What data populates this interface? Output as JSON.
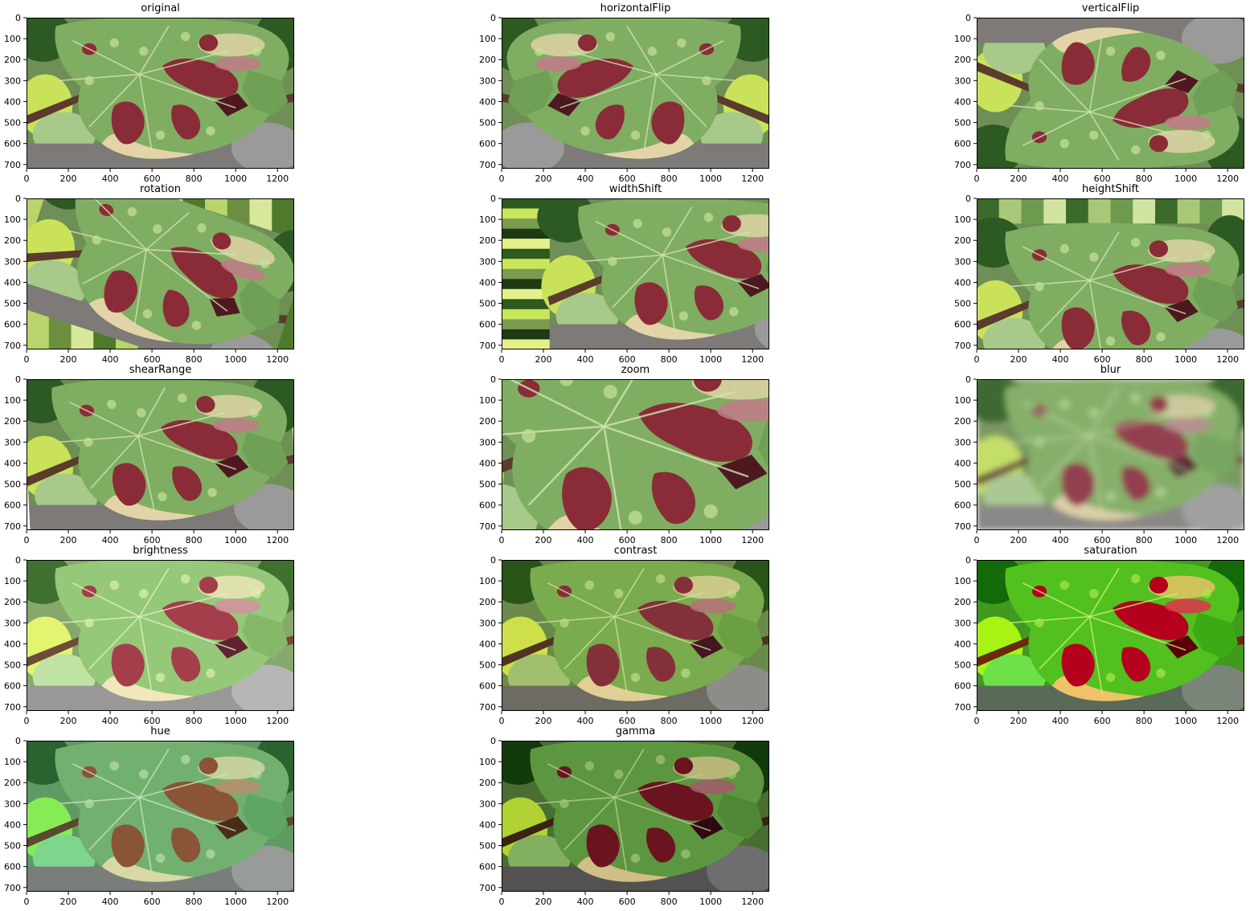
{
  "figure": {
    "panels": [
      {
        "title": "original",
        "variant": "original"
      },
      {
        "title": "horizontalFlip",
        "variant": "hflip"
      },
      {
        "title": "verticalFlip",
        "variant": "vflip"
      },
      {
        "title": "rotation",
        "variant": "rotation"
      },
      {
        "title": "widthShift",
        "variant": "wshift"
      },
      {
        "title": "heightShift",
        "variant": "hshift"
      },
      {
        "title": "shearRange",
        "variant": "shear"
      },
      {
        "title": "zoom",
        "variant": "zoom"
      },
      {
        "title": "blur",
        "variant": "blur"
      },
      {
        "title": "brightness",
        "variant": "brightness"
      },
      {
        "title": "contrast",
        "variant": "contrast"
      },
      {
        "title": "saturation",
        "variant": "saturation"
      },
      {
        "title": "hue",
        "variant": "hue"
      },
      {
        "title": "gamma",
        "variant": "gamma"
      }
    ],
    "x_ticks": [
      0,
      200,
      400,
      600,
      800,
      1000,
      1200
    ],
    "y_ticks": [
      0,
      100,
      200,
      300,
      400,
      500,
      600,
      700
    ],
    "x_range": [
      0,
      1280
    ],
    "y_range": [
      0,
      720
    ],
    "image_subject": "grape leaf with reddish-brown lesions"
  }
}
